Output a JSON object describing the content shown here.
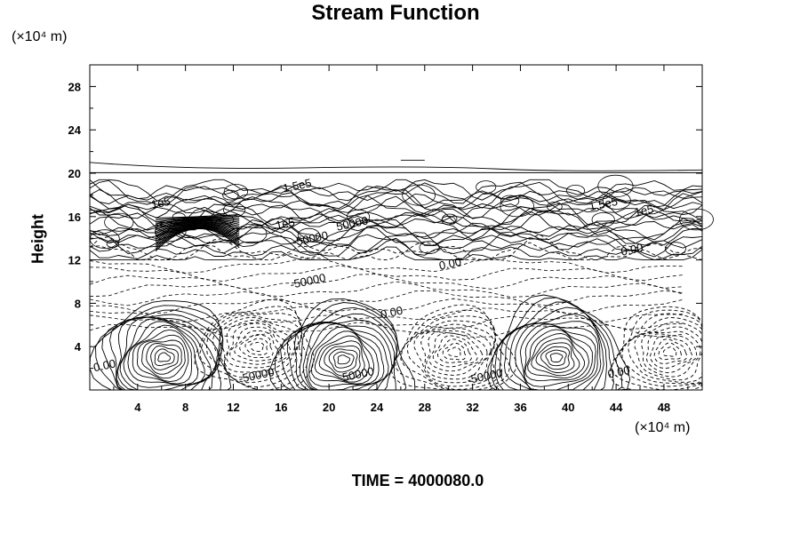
{
  "chart_data": {
    "type": "contour",
    "title": "Stream Function",
    "ylabel": "Height",
    "y_unit": "(×10⁴ m)",
    "x_unit": "(×10⁴ m)",
    "footer": "TIME = 4000080.0",
    "xlim": [
      0,
      51.2
    ],
    "ylim": [
      0,
      30
    ],
    "x_ticks": [
      4,
      8,
      12,
      16,
      20,
      24,
      28,
      32,
      36,
      40,
      44,
      48
    ],
    "y_ticks": [
      4,
      8,
      12,
      16,
      20,
      24,
      28
    ],
    "grid": false,
    "contour_labels": [
      {
        "text": "1.5e5",
        "x": 17.4,
        "y": 18.5
      },
      {
        "text": "1e5",
        "x": 6.0,
        "y": 16.9
      },
      {
        "text": "1e5",
        "x": 16.4,
        "y": 15.0
      },
      {
        "text": "50000",
        "x": 22.0,
        "y": 15.0
      },
      {
        "text": "-50000",
        "x": 18.5,
        "y": 13.6
      },
      {
        "text": "1.5e5",
        "x": 43.0,
        "y": 16.8
      },
      {
        "text": "1e5",
        "x": 46.4,
        "y": 16.2
      },
      {
        "text": "0.00",
        "x": 45.4,
        "y": 12.6
      },
      {
        "text": "0.00",
        "x": 30.2,
        "y": 11.3
      },
      {
        "text": "-50000",
        "x": 18.3,
        "y": 9.7
      },
      {
        "text": "0.00",
        "x": 25.3,
        "y": 6.8
      },
      {
        "text": "0.00",
        "x": 1.3,
        "y": 1.9
      },
      {
        "text": "-50000",
        "x": 14.0,
        "y": 1.0
      },
      {
        "text": "50000",
        "x": 22.5,
        "y": 1.1
      },
      {
        "text": "-50000",
        "x": 33.1,
        "y": 0.9
      },
      {
        "text": "0.00",
        "x": 44.3,
        "y": 1.3
      }
    ],
    "centers": [
      {
        "x": 6.2,
        "y": 3.0,
        "sign": "positive"
      },
      {
        "x": 21.2,
        "y": 2.8,
        "sign": "positive"
      },
      {
        "x": 39.0,
        "y": 3.0,
        "sign": "positive"
      },
      {
        "x": 14.0,
        "y": 4.0,
        "sign": "negative"
      },
      {
        "x": 30.5,
        "y": 3.5,
        "sign": "negative"
      },
      {
        "x": 48.5,
        "y": 3.5,
        "sign": "negative"
      }
    ]
  }
}
